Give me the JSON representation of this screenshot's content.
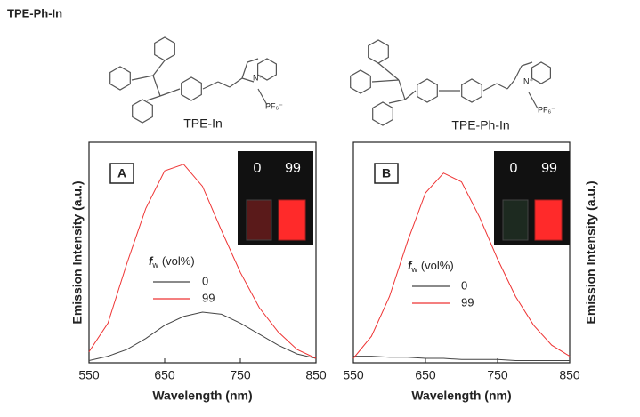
{
  "title": "TPE-Ph-In",
  "structures": [
    {
      "name": "TPE-In",
      "cation": "N⁺",
      "anion": "PF₆⁻"
    },
    {
      "name": "TPE-Ph-In",
      "cation": "N⁺",
      "anion": "PF₆⁻"
    }
  ],
  "chart_data": [
    {
      "type": "line",
      "panel": "A",
      "xlabel": "Wavelength (nm)",
      "ylabel": "Emission Intensity (a.u.)",
      "legend_title": {
        "symbol": "f",
        "subscript": "w",
        "unit": "(vol%)"
      },
      "inset_labels": [
        "0",
        "99"
      ],
      "x": [
        550,
        575,
        600,
        625,
        650,
        675,
        700,
        725,
        750,
        775,
        800,
        825,
        850
      ],
      "series": [
        {
          "name": "0",
          "color": "#444444",
          "values": [
            1,
            3,
            6,
            11,
            17,
            21,
            23,
            22,
            18,
            13,
            8,
            4,
            2
          ]
        },
        {
          "name": "99",
          "color": "#ee3333",
          "values": [
            5,
            18,
            45,
            70,
            87,
            90,
            80,
            60,
            41,
            25,
            14,
            6,
            2
          ]
        }
      ],
      "xlim": [
        550,
        850
      ],
      "xticks": [
        550,
        650,
        750,
        850
      ],
      "ylim": [
        0,
        100
      ]
    },
    {
      "type": "line",
      "panel": "B",
      "xlabel": "Wavelength (nm)",
      "ylabel": "Emission Intensity (a.u.)",
      "legend_title": {
        "symbol": "f",
        "subscript": "w",
        "unit": "(vol%)"
      },
      "inset_labels": [
        "0",
        "99"
      ],
      "x": [
        550,
        575,
        600,
        625,
        650,
        675,
        700,
        725,
        750,
        775,
        800,
        825,
        850
      ],
      "series": [
        {
          "name": "0",
          "color": "#444444",
          "values": [
            3,
            3,
            2.5,
            2.5,
            2,
            2,
            1.5,
            1.5,
            1.5,
            1,
            1,
            1,
            1
          ]
        },
        {
          "name": "99",
          "color": "#ee3333",
          "values": [
            2,
            12,
            30,
            55,
            77,
            86,
            82,
            66,
            47,
            30,
            17,
            8,
            3
          ]
        }
      ],
      "xlim": [
        550,
        850
      ],
      "xticks": [
        550,
        650,
        750,
        850
      ],
      "ylim": [
        0,
        100
      ]
    }
  ]
}
